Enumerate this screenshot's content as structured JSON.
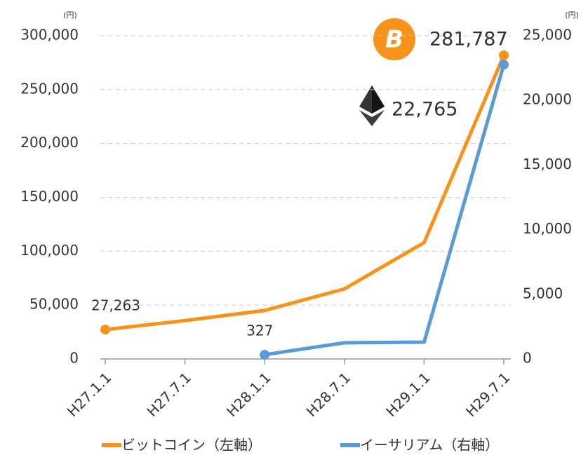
{
  "chart_data": {
    "type": "line",
    "categories": [
      "H27.1.1",
      "H27.7.1",
      "H28.1.1",
      "H28.7.1",
      "H29.1.1",
      "H29.7.1"
    ],
    "y_unit": "(円)",
    "y2_unit": "(円)",
    "series": [
      {
        "name": "ビットコイン（左軸）",
        "color": "#f7931a",
        "values": [
          27263,
          35600,
          45000,
          65000,
          108000,
          281787
        ],
        "value_labels": [
          "27,263",
          null,
          null,
          null,
          null,
          "281,787"
        ]
      },
      {
        "name": "イーサリアム（右軸）",
        "color": "#5b9bd5",
        "axis": "y2",
        "values": [
          null,
          null,
          327,
          1250,
          1300,
          22765
        ],
        "value_labels": [
          null,
          null,
          "327",
          null,
          null,
          "22,765"
        ]
      }
    ],
    "ylim": [
      0,
      300000
    ],
    "yticks": [
      0,
      {
        "value": 50000,
        "label": "50,000"
      },
      {
        "value": 100000,
        "label": "100,000"
      },
      {
        "value": 150000,
        "label": "150,000"
      },
      {
        "value": 200000,
        "label": "200,000"
      },
      {
        "value": 250000,
        "label": "250,000"
      },
      {
        "value": 300000,
        "label": "300,000"
      }
    ],
    "y2lim": [
      0,
      25000
    ],
    "y2ticks": [
      0,
      {
        "value": 5000,
        "label": "5,000"
      },
      {
        "value": 10000,
        "label": "10,000"
      },
      {
        "value": 15000,
        "label": "15,000"
      },
      {
        "value": 20000,
        "label": "20,000"
      },
      {
        "value": 25000,
        "label": "25,000"
      }
    ],
    "grid": true
  }
}
